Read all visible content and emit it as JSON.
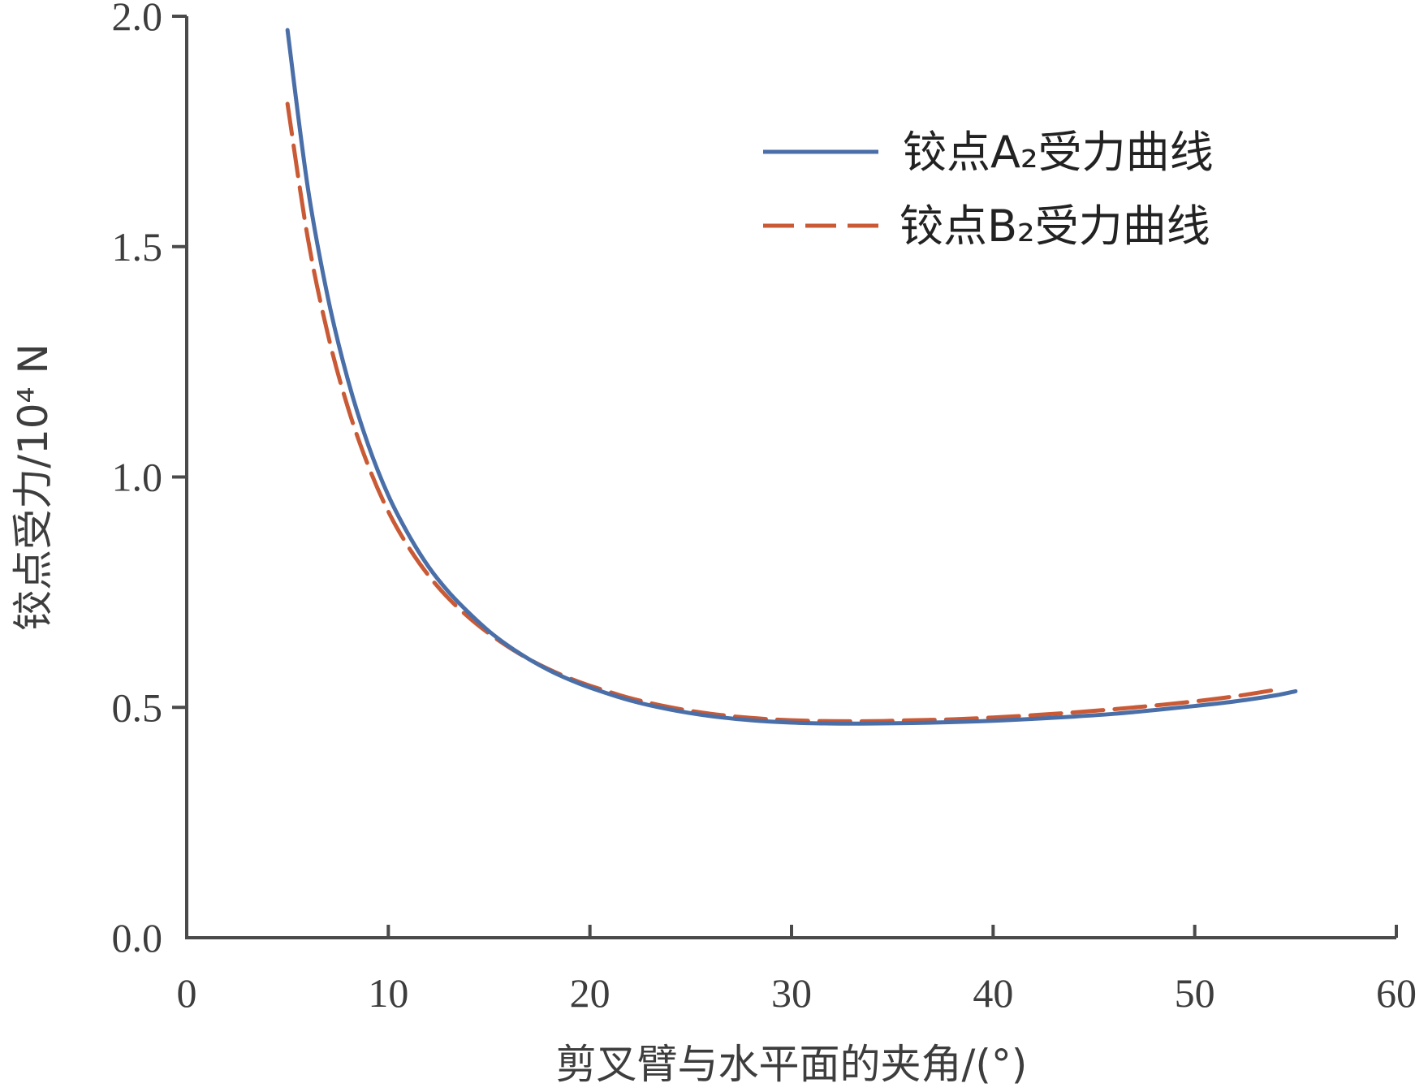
{
  "chart_data": {
    "type": "line",
    "title": "",
    "xlabel": "剪叉臂与水平面的夹角/(°)",
    "ylabel": "铰点受力/10⁴ N",
    "xlim": [
      0,
      60
    ],
    "ylim": [
      0,
      2.0
    ],
    "x_ticks": [
      "0",
      "10",
      "20",
      "30",
      "40",
      "50",
      "60"
    ],
    "y_ticks": [
      "0.0",
      "0.5",
      "1.0",
      "1.5",
      "2.0"
    ],
    "grid": false,
    "legend_position": "top-right",
    "series": [
      {
        "name": "铰点A₂受力曲线",
        "color": "#4a6fa8",
        "style": "solid",
        "x": [
          5,
          6,
          7,
          8,
          9,
          10,
          11,
          12,
          13,
          14,
          15,
          16,
          17,
          18,
          19,
          20,
          22,
          24,
          26,
          28,
          30,
          32,
          34,
          36,
          38,
          40,
          42,
          44,
          46,
          48,
          50,
          52,
          54,
          55
        ],
        "y": [
          1.97,
          1.63,
          1.39,
          1.21,
          1.07,
          0.96,
          0.875,
          0.805,
          0.75,
          0.705,
          0.665,
          0.632,
          0.604,
          0.58,
          0.56,
          0.543,
          0.515,
          0.495,
          0.481,
          0.472,
          0.467,
          0.465,
          0.465,
          0.466,
          0.468,
          0.471,
          0.475,
          0.48,
          0.486,
          0.494,
          0.503,
          0.513,
          0.526,
          0.535
        ]
      },
      {
        "name": "铰点B₂受力曲线",
        "color": "#c95a35",
        "style": "dashed",
        "x": [
          5,
          6,
          7,
          8,
          9,
          10,
          11,
          12,
          13,
          14,
          15,
          16,
          17,
          18,
          19,
          20,
          22,
          24,
          26,
          28,
          30,
          32,
          34,
          36,
          38,
          40,
          42,
          44,
          46,
          48,
          50,
          52,
          54
        ],
        "y": [
          1.81,
          1.52,
          1.31,
          1.15,
          1.025,
          0.925,
          0.848,
          0.786,
          0.736,
          0.695,
          0.66,
          0.63,
          0.604,
          0.582,
          0.563,
          0.547,
          0.52,
          0.5,
          0.486,
          0.477,
          0.472,
          0.47,
          0.47,
          0.472,
          0.474,
          0.478,
          0.483,
          0.489,
          0.496,
          0.504,
          0.513,
          0.524,
          0.538
        ]
      }
    ]
  }
}
